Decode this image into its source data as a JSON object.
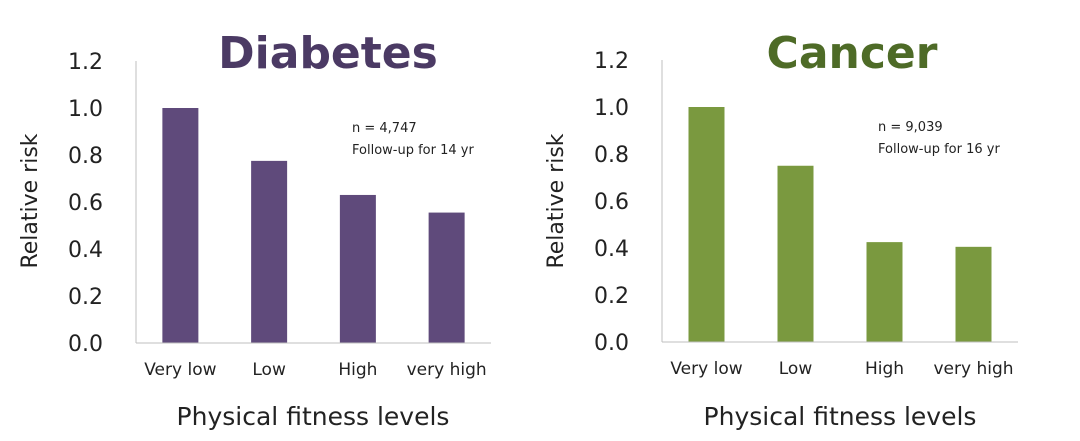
{
  "chart_data": [
    {
      "type": "bar",
      "title": "Diabetes",
      "title_color": "#4b3a64",
      "bar_color": "#5f4a7b",
      "categories": [
        "Very low",
        "Low",
        "High",
        "very high"
      ],
      "values": [
        1.0,
        0.775,
        0.63,
        0.555
      ],
      "xlabel": "Physical fitness levels",
      "ylabel": "Relative risk",
      "ylim": [
        0,
        1.2
      ],
      "yticks": [
        "0.0",
        "0.2",
        "0.4",
        "0.6",
        "0.8",
        "1.0",
        "1.2"
      ],
      "grid": false,
      "annotations": [
        "n = 4,747",
        "Follow-up for 14 yr"
      ]
    },
    {
      "type": "bar",
      "title": "Cancer",
      "title_color": "#4e6b27",
      "bar_color": "#7a993f",
      "categories": [
        "Very low",
        "Low",
        "High",
        "very high"
      ],
      "values": [
        1.0,
        0.75,
        0.425,
        0.405
      ],
      "xlabel": "Physical fitness levels",
      "ylabel": "Relative risk",
      "ylim": [
        0,
        1.2
      ],
      "yticks": [
        "0.0",
        "0.2",
        "0.4",
        "0.6",
        "0.8",
        "1.0",
        "1.2"
      ],
      "grid": false,
      "annotations": [
        "n = 9,039",
        "Follow-up for 16 yr"
      ]
    }
  ]
}
